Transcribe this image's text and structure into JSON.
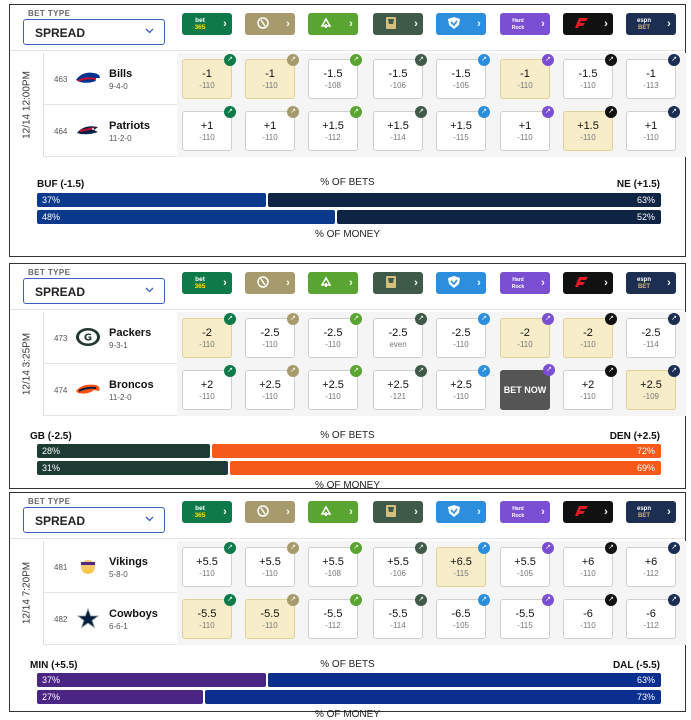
{
  "sportsbooks": [
    {
      "icon": "bet365-logo",
      "text": "bet 365",
      "color": "#0e7a4a"
    },
    {
      "icon": "caesars-logo",
      "text": "",
      "color": "#a79a6c"
    },
    {
      "icon": "draftkings-logo",
      "text": "",
      "color": "#5aa531"
    },
    {
      "icon": "betmgm-logo",
      "text": "",
      "color": "#3f5a48"
    },
    {
      "icon": "betrivers-logo",
      "text": "",
      "color": "#2c8edc"
    },
    {
      "icon": "hardrock-logo",
      "text": "",
      "color": "#7b4fd1"
    },
    {
      "icon": "fanatics-logo",
      "text": "",
      "color": "#111111"
    },
    {
      "icon": "espnbet-logo",
      "text": "",
      "color": "#1c2f52"
    }
  ],
  "games": [
    {
      "bet_type_label": "BET TYPE",
      "bet_type_value": "SPREAD",
      "date": "12/14 12:00PM",
      "teams": [
        {
          "num": "463",
          "name": "Bills",
          "record": "9-4-0",
          "logo": "bills-logo",
          "odds": [
            {
              "line": "-1",
              "price": "-110",
              "best": true
            },
            {
              "line": "-1",
              "price": "-110",
              "best": true
            },
            {
              "line": "-1.5",
              "price": "-108",
              "best": false
            },
            {
              "line": "-1.5",
              "price": "-106",
              "best": false
            },
            {
              "line": "-1.5",
              "price": "-105",
              "best": false
            },
            {
              "line": "-1",
              "price": "-110",
              "best": true
            },
            {
              "line": "-1.5",
              "price": "-110",
              "best": false
            },
            {
              "line": "-1",
              "price": "-113",
              "best": false
            }
          ]
        },
        {
          "num": "464",
          "name": "Patriots",
          "record": "11-2-0",
          "logo": "patriots-logo",
          "odds": [
            {
              "line": "+1",
              "price": "-110",
              "best": false
            },
            {
              "line": "+1",
              "price": "-110",
              "best": false
            },
            {
              "line": "+1.5",
              "price": "-112",
              "best": false
            },
            {
              "line": "+1.5",
              "price": "-114",
              "best": false
            },
            {
              "line": "+1.5",
              "price": "-115",
              "best": false
            },
            {
              "line": "+1",
              "price": "-110",
              "best": false
            },
            {
              "line": "+1.5",
              "price": "-110",
              "best": true
            },
            {
              "line": "+1",
              "price": "-110",
              "best": false
            }
          ]
        }
      ],
      "split": {
        "away": "BUF (-1.5)",
        "home": "NE (+1.5)",
        "bets_label": "% OF BETS",
        "money_label": "% OF MONEY",
        "bets_away": "37%",
        "bets_home": "63%",
        "money_away": "48%",
        "money_home": "52%",
        "bets_away_frac": 0.37,
        "money_away_frac": 0.48,
        "away_color": "#0b3a8c",
        "home_color": "#0f2343"
      }
    },
    {
      "bet_type_label": "BET TYPE",
      "bet_type_value": "SPREAD",
      "date": "12/14 3:25PM",
      "teams": [
        {
          "num": "473",
          "name": "Packers",
          "record": "9-3-1",
          "logo": "packers-logo",
          "odds": [
            {
              "line": "-2",
              "price": "-110",
              "best": true
            },
            {
              "line": "-2.5",
              "price": "-110",
              "best": false
            },
            {
              "line": "-2.5",
              "price": "-110",
              "best": false
            },
            {
              "line": "-2.5",
              "price": "even",
              "best": false
            },
            {
              "line": "-2.5",
              "price": "-110",
              "best": false
            },
            {
              "line": "-2",
              "price": "-110",
              "best": true
            },
            {
              "line": "-2",
              "price": "-110",
              "best": true
            },
            {
              "line": "-2.5",
              "price": "-114",
              "best": false
            }
          ]
        },
        {
          "num": "474",
          "name": "Broncos",
          "record": "11-2-0",
          "logo": "broncos-logo",
          "odds": [
            {
              "line": "+2",
              "price": "-110",
              "best": false
            },
            {
              "line": "+2.5",
              "price": "-110",
              "best": false
            },
            {
              "line": "+2.5",
              "price": "-110",
              "best": false
            },
            {
              "line": "+2.5",
              "price": "-121",
              "best": false
            },
            {
              "line": "+2.5",
              "price": "-110",
              "best": false
            },
            {
              "line": "+2",
              "price": "-110",
              "best": false,
              "bet_now": "BET NOW"
            },
            {
              "line": "+2",
              "price": "-110",
              "best": false
            },
            {
              "line": "+2.5",
              "price": "-109",
              "best": true
            }
          ]
        }
      ],
      "split": {
        "away": "GB (-2.5)",
        "home": "DEN (+2.5)",
        "bets_label": "% OF BETS",
        "money_label": "% OF MONEY",
        "bets_away": "28%",
        "bets_home": "72%",
        "money_away": "31%",
        "money_home": "69%",
        "bets_away_frac": 0.28,
        "money_away_frac": 0.31,
        "away_color": "#1e3b33",
        "home_color": "#f55a1b"
      }
    },
    {
      "bet_type_label": "BET TYPE",
      "bet_type_value": "SPREAD",
      "date": "12/14 7:20PM",
      "teams": [
        {
          "num": "481",
          "name": "Vikings",
          "record": "5-8-0",
          "logo": "vikings-logo",
          "odds": [
            {
              "line": "+5.5",
              "price": "-110",
              "best": false
            },
            {
              "line": "+5.5",
              "price": "-110",
              "best": false
            },
            {
              "line": "+5.5",
              "price": "-108",
              "best": false
            },
            {
              "line": "+5.5",
              "price": "-106",
              "best": false
            },
            {
              "line": "+6.5",
              "price": "-115",
              "best": true
            },
            {
              "line": "+5.5",
              "price": "-105",
              "best": false
            },
            {
              "line": "+6",
              "price": "-110",
              "best": false
            },
            {
              "line": "+6",
              "price": "-112",
              "best": false
            }
          ]
        },
        {
          "num": "482",
          "name": "Cowboys",
          "record": "6-6-1",
          "logo": "cowboys-logo",
          "odds": [
            {
              "line": "-5.5",
              "price": "-110",
              "best": true
            },
            {
              "line": "-5.5",
              "price": "-110",
              "best": true
            },
            {
              "line": "-5.5",
              "price": "-112",
              "best": false
            },
            {
              "line": "-5.5",
              "price": "-114",
              "best": false
            },
            {
              "line": "-6.5",
              "price": "-105",
              "best": false
            },
            {
              "line": "-5.5",
              "price": "-115",
              "best": false
            },
            {
              "line": "-6",
              "price": "-110",
              "best": false
            },
            {
              "line": "-6",
              "price": "-112",
              "best": false
            }
          ]
        }
      ],
      "split": {
        "away": "MIN (+5.5)",
        "home": "DAL (-5.5)",
        "bets_label": "% OF BETS",
        "money_label": "% OF MONEY",
        "bets_away": "37%",
        "bets_home": "63%",
        "money_away": "27%",
        "money_home": "73%",
        "bets_away_frac": 0.37,
        "money_away_frac": 0.27,
        "away_color": "#4b2584",
        "home_color": "#0a2f8f"
      }
    }
  ]
}
